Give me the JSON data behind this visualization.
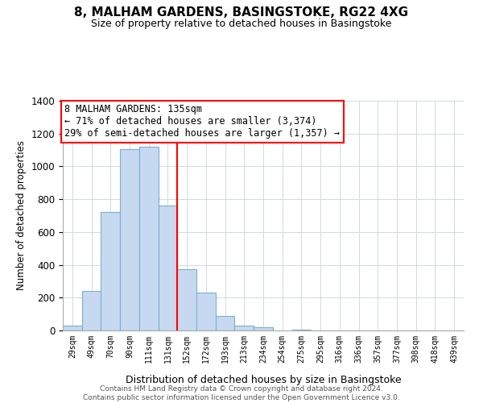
{
  "title": "8, MALHAM GARDENS, BASINGSTOKE, RG22 4XG",
  "subtitle": "Size of property relative to detached houses in Basingstoke",
  "xlabel": "Distribution of detached houses by size in Basingstoke",
  "ylabel": "Number of detached properties",
  "bar_labels": [
    "29sqm",
    "49sqm",
    "70sqm",
    "90sqm",
    "111sqm",
    "131sqm",
    "152sqm",
    "172sqm",
    "193sqm",
    "213sqm",
    "234sqm",
    "254sqm",
    "275sqm",
    "295sqm",
    "316sqm",
    "336sqm",
    "357sqm",
    "377sqm",
    "398sqm",
    "418sqm",
    "439sqm"
  ],
  "bar_values": [
    30,
    240,
    720,
    1105,
    1120,
    760,
    375,
    230,
    90,
    30,
    20,
    0,
    5,
    0,
    0,
    0,
    0,
    0,
    0,
    0,
    0
  ],
  "bar_color": "#c6d9f0",
  "bar_edge_color": "#7bafd4",
  "vline_x_index": 5,
  "vline_color": "red",
  "ylim": [
    0,
    1400
  ],
  "yticks": [
    0,
    200,
    400,
    600,
    800,
    1000,
    1200,
    1400
  ],
  "annotation_title": "8 MALHAM GARDENS: 135sqm",
  "annotation_line1": "← 71% of detached houses are smaller (3,374)",
  "annotation_line2": "29% of semi-detached houses are larger (1,357) →",
  "footer_line1": "Contains HM Land Registry data © Crown copyright and database right 2024.",
  "footer_line2": "Contains public sector information licensed under the Open Government Licence v3.0.",
  "bg_color": "#ffffff",
  "grid_color": "#d0d8e8"
}
